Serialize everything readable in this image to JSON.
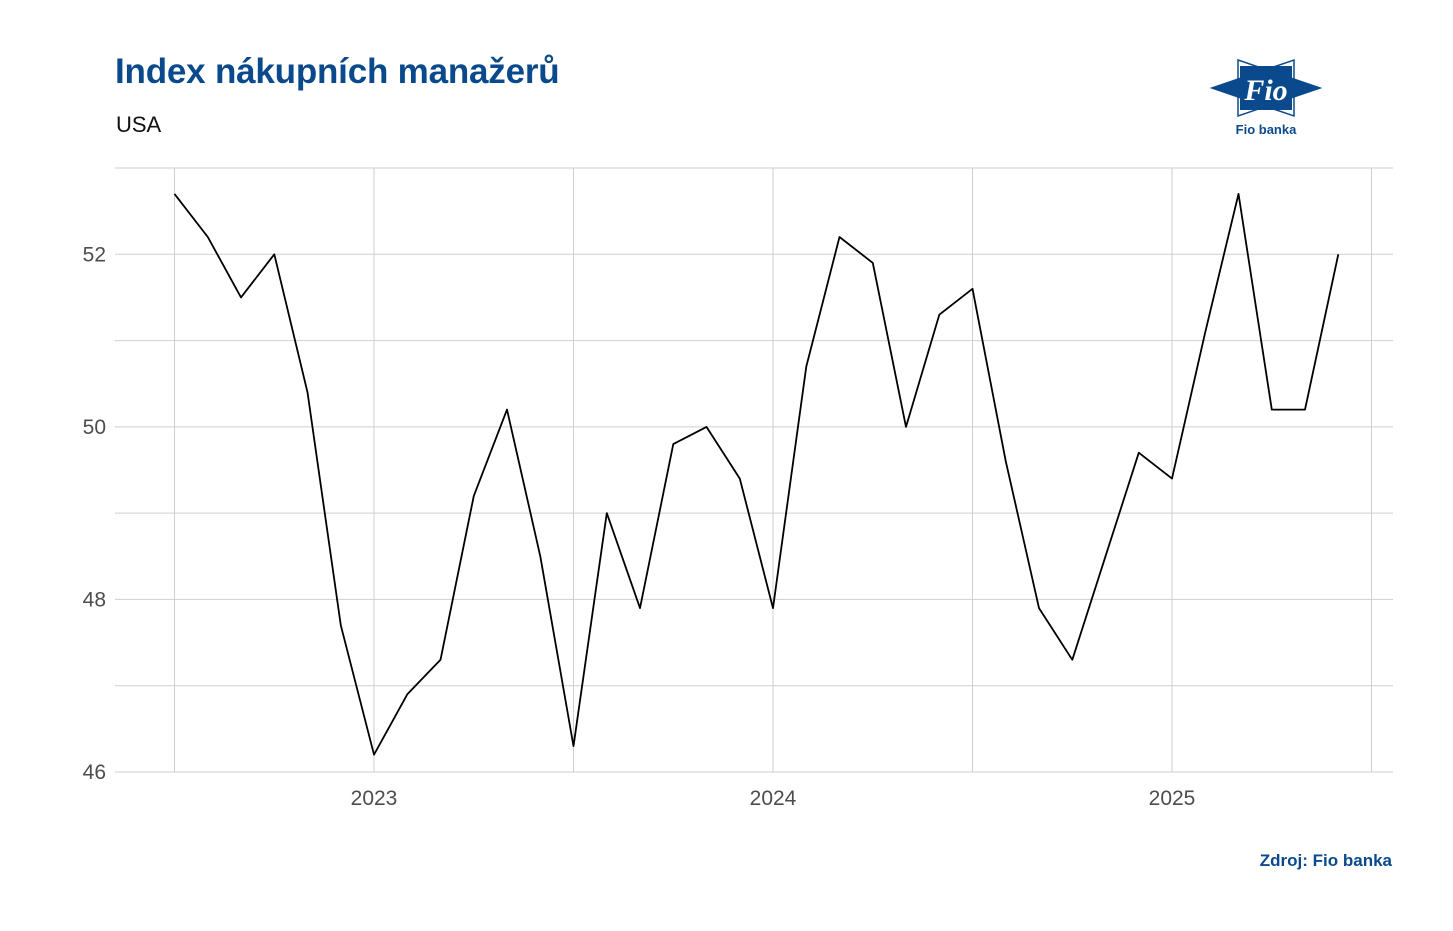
{
  "title": "Index nákupních manažerů",
  "subtitle": "USA",
  "source": "Zdroj: Fio banka",
  "logo": {
    "mark_text": "Fio",
    "caption": "Fio banka",
    "color": "#0a4a8c"
  },
  "chart_data": {
    "type": "line",
    "title": "Index nákupních manažerů",
    "subtitle": "USA",
    "xlabel": "",
    "ylabel": "",
    "ylim": [
      46,
      53
    ],
    "yticks": [
      46,
      48,
      50,
      52
    ],
    "xticks": [
      "2023",
      "2024",
      "2025"
    ],
    "grid": true,
    "legend": "none",
    "line_color": "#000000",
    "series": [
      {
        "x": [
          "2022-07",
          "2022-08",
          "2022-09",
          "2022-10",
          "2022-11",
          "2022-12",
          "2023-01",
          "2023-02",
          "2023-03",
          "2023-04",
          "2023-05",
          "2023-06",
          "2023-07",
          "2023-08",
          "2023-09",
          "2023-10",
          "2023-11",
          "2023-12",
          "2024-01",
          "2024-02",
          "2024-03",
          "2024-04",
          "2024-05",
          "2024-06",
          "2024-07",
          "2024-08",
          "2024-09",
          "2024-10",
          "2024-11",
          "2024-12",
          "2025-01",
          "2025-02",
          "2025-03",
          "2025-04",
          "2025-05",
          "2025-06"
        ],
        "values": [
          52.7,
          52.2,
          51.5,
          52.0,
          50.4,
          47.7,
          46.2,
          46.9,
          47.3,
          49.2,
          50.2,
          48.5,
          46.3,
          49.0,
          47.9,
          49.8,
          50.0,
          49.4,
          47.9,
          50.7,
          52.2,
          51.9,
          50.0,
          51.3,
          51.6,
          49.6,
          47.9,
          47.3,
          48.5,
          49.7,
          49.4,
          51.1,
          52.7,
          50.2,
          50.2,
          52.0
        ]
      }
    ]
  }
}
